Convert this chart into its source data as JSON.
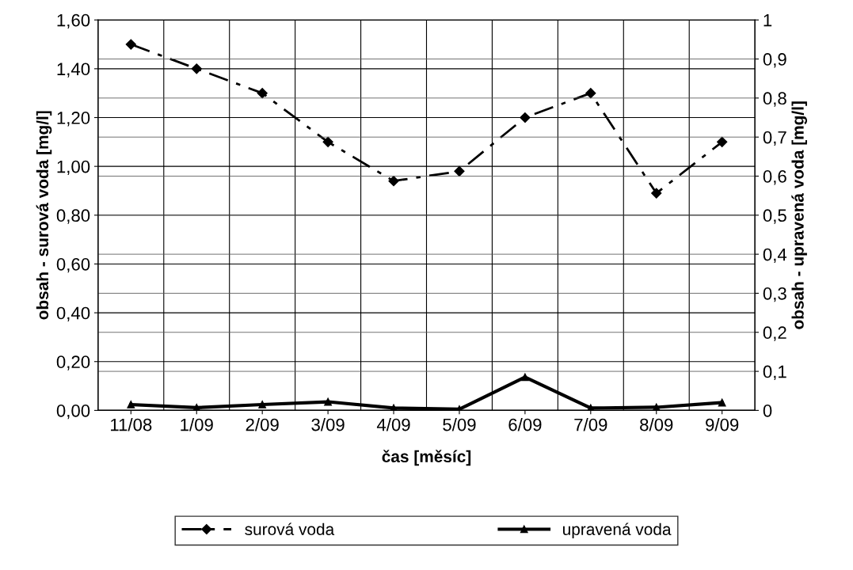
{
  "chart_data": {
    "type": "line",
    "xlabel": "čas [měsíc]",
    "ylabel": "obsah - surová voda [mg/l]",
    "y2label": "obsah - upravená voda [mg/l]",
    "categories": [
      "11/08",
      "1/09",
      "2/09",
      "3/09",
      "4/09",
      "5/09",
      "6/09",
      "7/09",
      "8/09",
      "9/09"
    ],
    "series": [
      {
        "name": "surová voda",
        "color": "#000000",
        "marker": "diamond",
        "line_style": "dashed",
        "values": [
          1.5,
          1.4,
          1.3,
          1.1,
          0.94,
          0.98,
          1.2,
          1.3,
          0.89,
          1.1
        ]
      },
      {
        "name": "upravená voda",
        "color": "#000000",
        "marker": "triangle",
        "line_style": "solid",
        "axis": "y2",
        "values": [
          0.015,
          0.007,
          0.015,
          0.022,
          0.006,
          0.003,
          0.085,
          0.006,
          0.008,
          0.02
        ]
      }
    ],
    "ylim": [
      0,
      1.6
    ],
    "yticks": [
      {
        "value": 0,
        "label": "0,00"
      },
      {
        "value": 0.2,
        "label": "0,20"
      },
      {
        "value": 0.4,
        "label": "0,40"
      },
      {
        "value": 0.6,
        "label": "0,60"
      },
      {
        "value": 0.8,
        "label": "0,80"
      },
      {
        "value": 1.0,
        "label": "1,00"
      },
      {
        "value": 1.2,
        "label": "1,20"
      },
      {
        "value": 1.4,
        "label": "1,40"
      },
      {
        "value": 1.6,
        "label": "1,60"
      }
    ],
    "y2lim": [
      0,
      1
    ],
    "y2ticks": [
      0,
      {
        "value": 0.1,
        "label": "0,1"
      },
      {
        "value": 0.2,
        "label": "0,2"
      },
      {
        "value": 0.3,
        "label": "0,3"
      },
      {
        "value": 0.4,
        "label": "0,4"
      },
      {
        "value": 0.5,
        "label": "0,5"
      },
      {
        "value": 0.6,
        "label": "0,6"
      },
      {
        "value": 0.7,
        "label": "0,7"
      },
      {
        "value": 0.8,
        "label": "0,8"
      },
      {
        "value": 0.9,
        "label": "0,9"
      },
      1
    ],
    "grid": true,
    "legend": "bottom"
  }
}
